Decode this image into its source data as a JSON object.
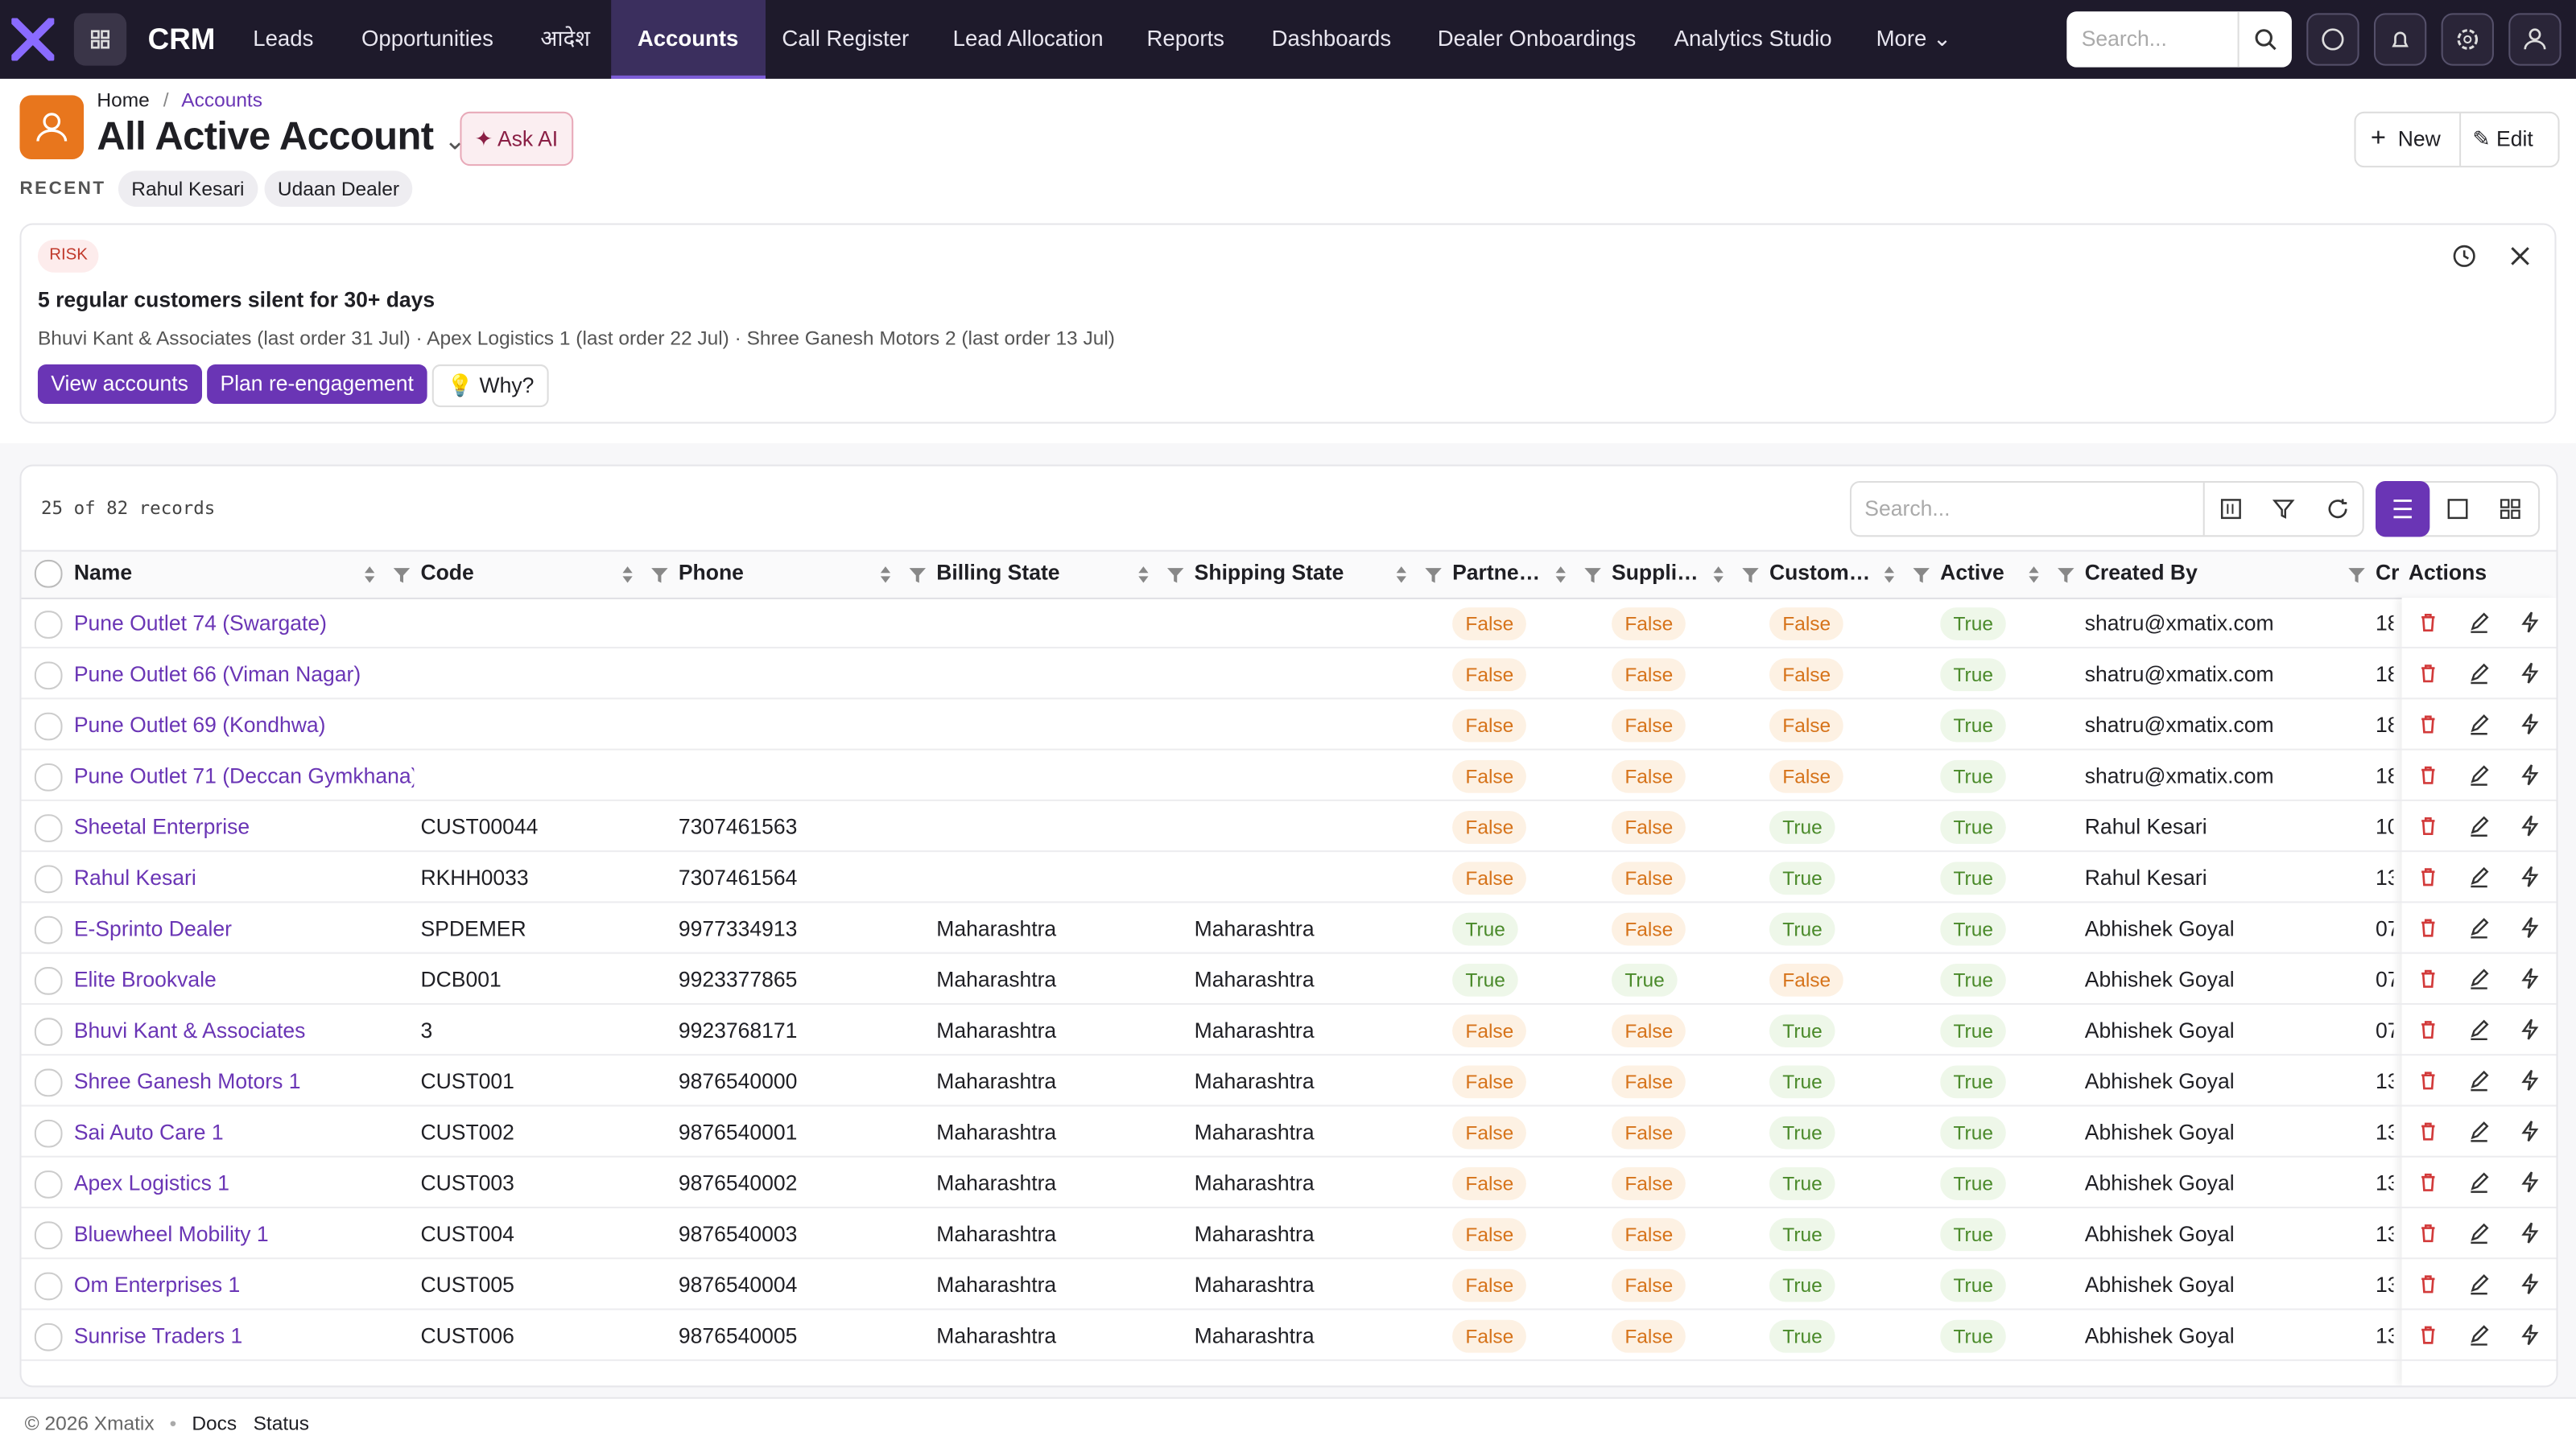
{
  "nav": {
    "brand": "CRM",
    "items": [
      "Leads",
      "Opportunities",
      "आदेश",
      "Accounts",
      "Call Register",
      "Lead Allocation",
      "Reports",
      "Dashboards",
      "Dealer Onboardings",
      "Analytics Studio"
    ],
    "active": 3,
    "more": "More",
    "search_placeholder": "Search..."
  },
  "header": {
    "breadcrumb": [
      "Home",
      "Accounts"
    ],
    "title": "All Active Account",
    "ask_ai": "Ask AI",
    "new": "New",
    "edit": "Edit",
    "recent_label": "RECENT",
    "recent": [
      "Rahul Kesari",
      "Udaan Dealer"
    ]
  },
  "insight": {
    "tag": "RISK",
    "heading": "5 regular customers silent for 30+ days",
    "detail": "Bhuvi Kant & Associates (last order 31 Jul) · Apex Logistics 1 (last order 22 Jul) · Shree Ganesh Motors 2 (last order 13 Jul)",
    "actions": [
      "View accounts",
      "Plan re-engagement",
      "Why?"
    ]
  },
  "table": {
    "count": "25 of 82 records",
    "search_placeholder": "Search...",
    "columns": [
      "Name",
      "Code",
      "Phone",
      "Billing State",
      "Shipping State",
      "Partne…",
      "Suppli…",
      "Custom…",
      "Active",
      "Created By",
      "Cr",
      "Actions"
    ],
    "rows": [
      [
        "Pune Outlet 74 (Swargate)",
        null,
        null,
        null,
        null,
        "False",
        "False",
        "False",
        "True",
        "shatru@xmatix.com",
        "18"
      ],
      [
        "Pune Outlet 66 (Viman Nagar)",
        null,
        null,
        null,
        null,
        "False",
        "False",
        "False",
        "True",
        "shatru@xmatix.com",
        "18"
      ],
      [
        "Pune Outlet 69 (Kondhwa)",
        null,
        null,
        null,
        null,
        "False",
        "False",
        "False",
        "True",
        "shatru@xmatix.com",
        "18"
      ],
      [
        "Pune Outlet 71 (Deccan Gymkhana)",
        null,
        null,
        null,
        null,
        "False",
        "False",
        "False",
        "True",
        "shatru@xmatix.com",
        "18"
      ],
      [
        "Sheetal Enterprise",
        "CUST00044",
        "7307461563",
        null,
        null,
        "False",
        "False",
        "True",
        "True",
        "Rahul Kesari",
        "10"
      ],
      [
        "Rahul Kesari",
        "RKHH0033",
        "7307461564",
        null,
        null,
        "False",
        "False",
        "True",
        "True",
        "Rahul Kesari",
        "13"
      ],
      [
        "E-Sprinto Dealer",
        "SPDEMER",
        "9977334913",
        "Maharashtra",
        "Maharashtra",
        "True",
        "False",
        "True",
        "True",
        "Abhishek Goyal",
        "07"
      ],
      [
        "Elite Brookvale",
        "DCB001",
        "9923377865",
        "Maharashtra",
        "Maharashtra",
        "True",
        "True",
        "False",
        "True",
        "Abhishek Goyal",
        "07"
      ],
      [
        "Bhuvi Kant & Associates",
        "3",
        "9923768171",
        "Maharashtra",
        "Maharashtra",
        "False",
        "False",
        "True",
        "True",
        "Abhishek Goyal",
        "07"
      ],
      [
        "Shree Ganesh Motors 1",
        "CUST001",
        "9876540000",
        "Maharashtra",
        "Maharashtra",
        "False",
        "False",
        "True",
        "True",
        "Abhishek Goyal",
        "13"
      ],
      [
        "Sai Auto Care 1",
        "CUST002",
        "9876540001",
        "Maharashtra",
        "Maharashtra",
        "False",
        "False",
        "True",
        "True",
        "Abhishek Goyal",
        "13"
      ],
      [
        "Apex Logistics 1",
        "CUST003",
        "9876540002",
        "Maharashtra",
        "Maharashtra",
        "False",
        "False",
        "True",
        "True",
        "Abhishek Goyal",
        "13"
      ],
      [
        "Bluewheel Mobility 1",
        "CUST004",
        "9876540003",
        "Maharashtra",
        "Maharashtra",
        "False",
        "False",
        "True",
        "True",
        "Abhishek Goyal",
        "13"
      ],
      [
        "Om Enterprises 1",
        "CUST005",
        "9876540004",
        "Maharashtra",
        "Maharashtra",
        "False",
        "False",
        "True",
        "True",
        "Abhishek Goyal",
        "13"
      ],
      [
        "Sunrise Traders 1",
        "CUST006",
        "9876540005",
        "Maharashtra",
        "Maharashtra",
        "False",
        "False",
        "True",
        "True",
        "Abhishek Goyal",
        "13"
      ]
    ]
  },
  "footer": {
    "copyright": "© 2026 Xmatix",
    "links": [
      "Docs",
      "Status"
    ]
  }
}
